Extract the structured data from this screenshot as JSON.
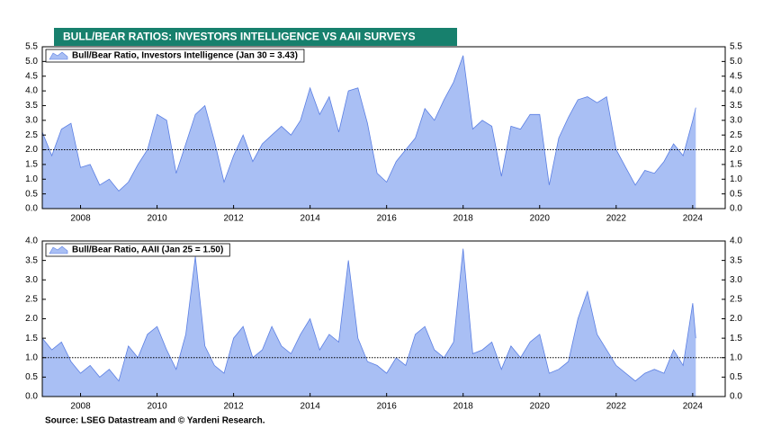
{
  "title": "BULL/BEAR RATIOS: INVESTORS INTELLIGENCE VS AAII SURVEYS",
  "source": "Source: LSEG Datastream and © Yardeni Research.",
  "chart_data": [
    {
      "type": "area",
      "x": [
        2007,
        2007.25,
        2007.5,
        2007.75,
        2008,
        2008.25,
        2008.5,
        2008.75,
        2009,
        2009.25,
        2009.5,
        2009.75,
        2010,
        2010.25,
        2010.5,
        2010.75,
        2011,
        2011.25,
        2011.5,
        2011.75,
        2012,
        2012.25,
        2012.5,
        2012.75,
        2013,
        2013.25,
        2013.5,
        2013.75,
        2014,
        2014.25,
        2014.5,
        2014.75,
        2015,
        2015.25,
        2015.5,
        2015.75,
        2016,
        2016.25,
        2016.5,
        2016.75,
        2017,
        2017.25,
        2017.5,
        2017.75,
        2018,
        2018.25,
        2018.5,
        2018.75,
        2019,
        2019.25,
        2019.5,
        2019.75,
        2020,
        2020.25,
        2020.5,
        2020.75,
        2021,
        2021.25,
        2021.5,
        2021.75,
        2022,
        2022.25,
        2022.5,
        2022.75,
        2023,
        2023.25,
        2023.5,
        2023.75,
        2024,
        2024.08
      ],
      "series": [
        {
          "name": "Bull/Bear Ratio, Investors Intelligence (Jan 30 = 3.43)",
          "color": "#5b7fe3",
          "fill": "#a9bff4",
          "values": [
            2.6,
            1.8,
            2.7,
            2.9,
            1.4,
            1.5,
            0.8,
            1.0,
            0.6,
            0.9,
            1.5,
            2.0,
            3.2,
            3.0,
            1.2,
            2.2,
            3.2,
            3.5,
            2.3,
            0.9,
            1.8,
            2.5,
            1.6,
            2.2,
            2.5,
            2.8,
            2.5,
            3.0,
            4.1,
            3.2,
            3.8,
            2.6,
            4.0,
            4.1,
            2.9,
            1.2,
            0.9,
            1.6,
            2.0,
            2.4,
            3.4,
            3.0,
            3.7,
            4.3,
            5.2,
            2.7,
            3.0,
            2.8,
            1.1,
            2.8,
            2.7,
            3.2,
            3.2,
            0.8,
            2.4,
            3.1,
            3.7,
            3.8,
            3.6,
            3.8,
            2.0,
            1.4,
            0.8,
            1.3,
            1.2,
            1.6,
            2.2,
            1.8,
            3.0,
            3.43
          ]
        }
      ],
      "xlim": [
        2007,
        2024.85
      ],
      "xticks": [
        2008,
        2010,
        2012,
        2014,
        2016,
        2018,
        2020,
        2022,
        2024
      ],
      "ylim": [
        0,
        5.5
      ],
      "yticks": [
        {
          "value": 0,
          "label": "0.0"
        },
        {
          "value": 0.5,
          "label": "0.5"
        },
        {
          "value": 1,
          "label": "1.0"
        },
        {
          "value": 1.5,
          "label": "1.5"
        },
        {
          "value": 2,
          "label": "2.0"
        },
        {
          "value": 2.5,
          "label": "2.5"
        },
        {
          "value": 3,
          "label": "3.0"
        },
        {
          "value": 3.5,
          "label": "3.5"
        },
        {
          "value": 4,
          "label": "4.0"
        },
        {
          "value": 4.5,
          "label": "4.5"
        },
        {
          "value": 5,
          "label": "5.0"
        },
        {
          "value": 5.5,
          "label": "5.5"
        }
      ],
      "ref_line": 2,
      "legend": "upper left"
    },
    {
      "type": "area",
      "x": [
        2007,
        2007.25,
        2007.5,
        2007.75,
        2008,
        2008.25,
        2008.5,
        2008.75,
        2009,
        2009.25,
        2009.5,
        2009.75,
        2010,
        2010.25,
        2010.5,
        2010.75,
        2011,
        2011.25,
        2011.5,
        2011.75,
        2012,
        2012.25,
        2012.5,
        2012.75,
        2013,
        2013.25,
        2013.5,
        2013.75,
        2014,
        2014.25,
        2014.5,
        2014.75,
        2015,
        2015.25,
        2015.5,
        2015.75,
        2016,
        2016.25,
        2016.5,
        2016.75,
        2017,
        2017.25,
        2017.5,
        2017.75,
        2018,
        2018.25,
        2018.5,
        2018.75,
        2019,
        2019.25,
        2019.5,
        2019.75,
        2020,
        2020.25,
        2020.5,
        2020.75,
        2021,
        2021.25,
        2021.5,
        2021.75,
        2022,
        2022.25,
        2022.5,
        2022.75,
        2023,
        2023.25,
        2023.5,
        2023.75,
        2024,
        2024.08
      ],
      "series": [
        {
          "name": "Bull/Bear Ratio, AAII (Jan 25 = 1.50)",
          "color": "#5b7fe3",
          "fill": "#a9bff4",
          "values": [
            1.5,
            1.2,
            1.4,
            0.9,
            0.6,
            0.8,
            0.5,
            0.7,
            0.4,
            1.3,
            1.0,
            1.6,
            1.8,
            1.2,
            0.7,
            1.6,
            3.6,
            1.3,
            0.8,
            0.6,
            1.5,
            1.8,
            1.0,
            1.2,
            1.8,
            1.3,
            1.1,
            1.6,
            2.0,
            1.2,
            1.6,
            1.4,
            3.5,
            1.5,
            0.9,
            0.8,
            0.6,
            1.0,
            0.8,
            1.6,
            1.8,
            1.2,
            1.0,
            1.4,
            3.8,
            1.1,
            1.2,
            1.4,
            0.7,
            1.3,
            1.0,
            1.4,
            1.6,
            0.6,
            0.7,
            0.9,
            2.0,
            2.7,
            1.6,
            1.2,
            0.8,
            0.6,
            0.4,
            0.6,
            0.7,
            0.6,
            1.2,
            0.8,
            2.4,
            1.5
          ]
        }
      ],
      "xlim": [
        2007,
        2024.85
      ],
      "xticks": [
        2008,
        2010,
        2012,
        2014,
        2016,
        2018,
        2020,
        2022,
        2024
      ],
      "ylim": [
        0,
        4
      ],
      "yticks": [
        {
          "value": 0,
          "label": "0.0"
        },
        {
          "value": 0.5,
          "label": "0.5"
        },
        {
          "value": 1,
          "label": "1.0"
        },
        {
          "value": 1.5,
          "label": "1.5"
        },
        {
          "value": 2,
          "label": "2.0"
        },
        {
          "value": 2.5,
          "label": "2.5"
        },
        {
          "value": 3,
          "label": "3.0"
        },
        {
          "value": 3.5,
          "label": "3.5"
        },
        {
          "value": 4,
          "label": "4.0"
        }
      ],
      "ref_line": 1,
      "legend": "upper left"
    }
  ]
}
